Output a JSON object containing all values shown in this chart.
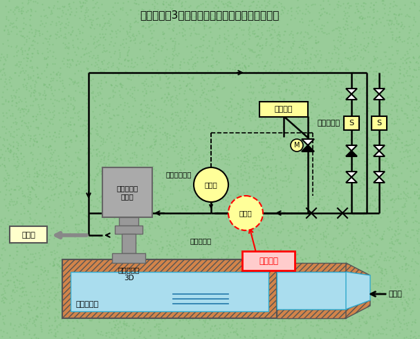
{
  "title": "伊方発電所3号機　海水ポンプまわり系統概略図",
  "bg_color": "#99cc99",
  "line_color": "#000000",
  "pipe_lw": 1.8,
  "fig_width": 6.07,
  "fig_height": 4.9,
  "labels": {
    "motor": "海水ポンプ\nモータ",
    "pump": "海水ポンプ\n3D",
    "pit": "海水ピット",
    "flow1": "流量計",
    "flow2": "流量計",
    "kiki_mizu": "機器用水",
    "motor_reisui": "モータ冷却水",
    "jiku_jyunkatsu": "軸受潤滑水",
    "strainer": "ストレーナ",
    "kiki": "各機器",
    "intake": "取水口",
    "location": "当該箇所"
  }
}
